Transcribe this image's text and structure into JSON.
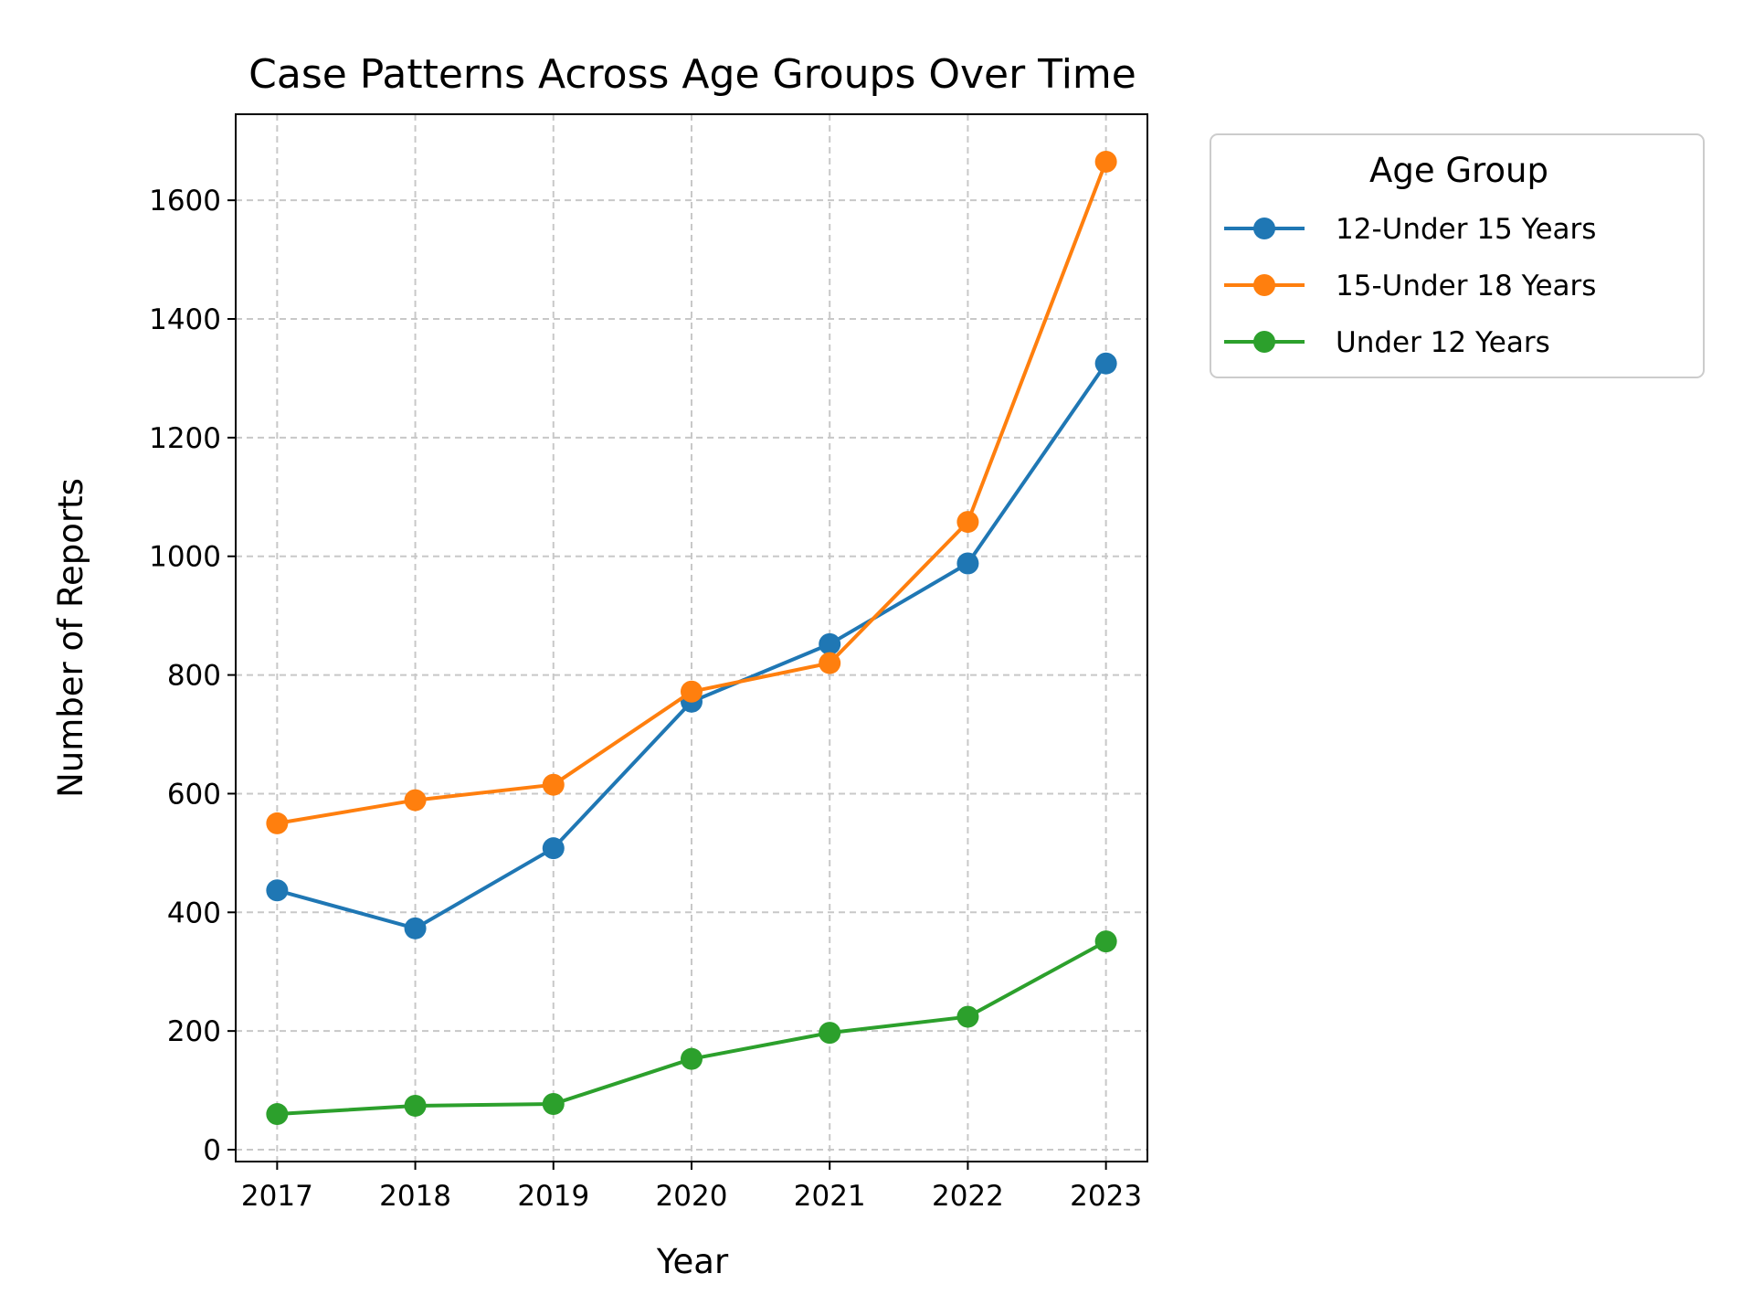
{
  "chart_data": {
    "type": "line",
    "title": "Case Patterns Across Age Groups Over Time",
    "xlabel": "Year",
    "ylabel": "Number of Reports",
    "x": [
      2017,
      2018,
      2019,
      2020,
      2021,
      2022,
      2023
    ],
    "x_tick_labels": [
      "2017",
      "2018",
      "2019",
      "2020",
      "2021",
      "2022",
      "2023"
    ],
    "yticks": [
      0,
      200,
      400,
      600,
      800,
      1000,
      1200,
      1400,
      1600
    ],
    "y_tick_labels": [
      "0",
      "200",
      "400",
      "600",
      "800",
      "1000",
      "1200",
      "1400",
      "1600"
    ],
    "xlim": [
      2016.7,
      2023.3
    ],
    "ylim": [
      -20,
      1745
    ],
    "grid": true,
    "legend": {
      "title": "Age Group",
      "placement": "outside upper right"
    },
    "series": [
      {
        "name": "12-Under 15 Years",
        "color": "#1f77b4",
        "values": [
          437,
          373,
          508,
          755,
          852,
          988,
          1325
        ]
      },
      {
        "name": "15-Under 18 Years",
        "color": "#ff7f0e",
        "values": [
          550,
          589,
          615,
          772,
          820,
          1058,
          1665
        ]
      },
      {
        "name": "Under 12 Years",
        "color": "#2ca02c",
        "values": [
          60,
          74,
          77,
          153,
          197,
          224,
          351
        ]
      }
    ]
  }
}
